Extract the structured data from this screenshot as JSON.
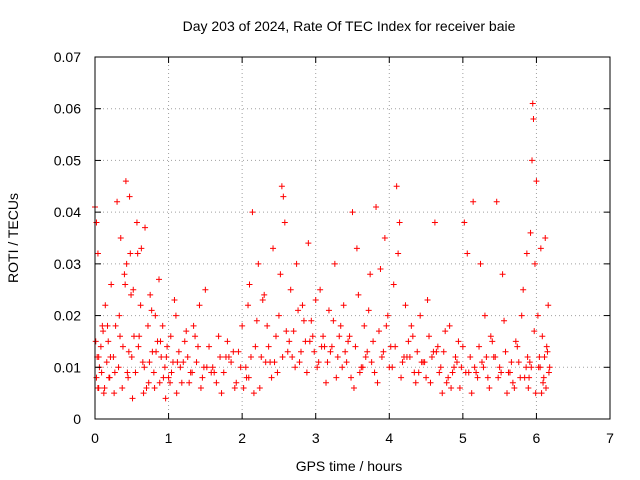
{
  "chart_data": {
    "type": "scatter",
    "title": "Day 203 of 2024, Rate Of TEC Index for receiver baie",
    "xlabel": "GPS time / hours",
    "ylabel": "ROTI / TECUs",
    "xlim": [
      0,
      7
    ],
    "ylim": [
      0,
      0.07
    ],
    "x_ticks": [
      0,
      1,
      2,
      3,
      4,
      5,
      6,
      7
    ],
    "x_tick_labels": [
      "0",
      "1",
      "2",
      "3",
      "4",
      "5",
      "6",
      "7"
    ],
    "y_ticks": [
      0,
      0.01,
      0.02,
      0.03,
      0.04,
      0.05,
      0.06,
      0.07
    ],
    "y_tick_labels": [
      "0",
      "0.01",
      "0.02",
      "0.03",
      "0.04",
      "0.05",
      "0.06",
      "0.07"
    ],
    "grid": true,
    "marker": "+",
    "marker_color": "#ff0000",
    "series": [
      {
        "x": [
          0.0,
          0.01,
          0.02,
          0.03,
          0.04,
          0.05,
          0.06,
          0.08,
          0.1,
          0.12,
          0.14,
          0.16,
          0.18,
          0.2,
          0.22,
          0.25,
          0.28,
          0.3,
          0.32,
          0.35,
          0.38,
          0.4,
          0.42,
          0.45,
          0.47,
          0.48,
          0.5,
          0.52,
          0.55,
          0.58,
          0.6,
          0.62,
          0.65,
          0.68,
          0.7,
          0.72,
          0.75,
          0.78,
          0.8,
          0.82,
          0.85,
          0.88,
          0.9,
          0.92,
          0.95,
          0.98,
          1.0,
          1.03,
          1.06,
          1.1,
          1.14,
          1.18,
          1.22,
          1.26,
          1.3,
          1.34,
          1.38,
          1.42,
          1.46,
          1.5,
          1.55,
          1.6,
          1.65,
          1.7,
          1.75,
          1.8,
          1.85,
          1.9,
          1.95,
          2.0,
          2.05,
          2.08,
          2.1,
          2.14,
          2.18,
          2.22,
          2.26,
          2.3,
          2.34,
          2.38,
          2.42,
          2.46,
          2.5,
          2.54,
          2.56,
          2.58,
          2.62,
          2.66,
          2.7,
          2.74,
          2.78,
          2.82,
          2.86,
          2.9,
          2.94,
          2.98,
          3.02,
          3.06,
          3.1,
          3.14,
          3.18,
          3.22,
          3.26,
          3.3,
          3.34,
          3.38,
          3.42,
          3.46,
          3.5,
          3.54,
          3.58,
          3.62,
          3.66,
          3.7,
          3.74,
          3.78,
          3.82,
          3.86,
          3.9,
          3.94,
          3.98,
          4.02,
          4.06,
          4.1,
          4.14,
          4.18,
          4.22,
          4.26,
          4.3,
          4.34,
          4.38,
          4.42,
          4.46,
          4.5,
          4.54,
          4.58,
          4.62,
          4.66,
          4.7,
          4.74,
          4.78,
          4.82,
          4.86,
          4.9,
          4.94,
          4.98,
          5.02,
          5.06,
          5.1,
          5.14,
          5.18,
          5.22,
          5.26,
          5.3,
          5.34,
          5.38,
          5.42,
          5.46,
          5.5,
          5.54,
          5.58,
          5.62,
          5.66,
          5.7,
          5.74,
          5.78,
          5.82,
          5.86,
          5.88,
          5.9,
          5.92,
          5.93,
          5.94,
          5.95,
          5.96,
          5.98,
          6.0,
          6.02,
          6.04,
          6.06,
          6.08,
          6.1,
          6.12,
          6.14,
          6.16,
          6.18,
          0.02,
          0.05,
          0.09,
          0.13,
          0.17,
          0.21,
          0.27,
          0.33,
          0.37,
          0.43,
          0.46,
          0.49,
          0.53,
          0.57,
          0.63,
          0.67,
          0.73,
          0.77,
          0.83,
          0.87,
          0.93,
          0.97,
          1.02,
          1.08,
          1.12,
          1.16,
          1.24,
          1.32,
          1.4,
          1.48,
          1.58,
          1.68,
          1.78,
          1.88,
          1.98,
          2.06,
          2.12,
          2.2,
          2.28,
          2.36,
          2.44,
          2.52,
          2.6,
          2.68,
          2.76,
          2.84,
          2.92,
          3.0,
          3.08,
          3.16,
          3.24,
          3.32,
          3.4,
          3.48,
          3.56,
          3.64,
          3.72,
          3.8,
          3.88,
          3.96,
          4.04,
          4.12,
          4.2,
          4.28,
          4.36,
          4.44,
          4.52,
          4.6,
          4.68,
          4.76,
          4.84,
          4.92,
          5.0,
          5.08,
          5.16,
          5.24,
          5.32,
          5.4,
          5.48,
          5.56,
          5.64,
          5.72,
          5.8,
          5.87,
          5.91,
          5.97,
          6.03,
          6.07,
          6.11,
          6.15,
          0.04,
          0.11,
          0.19,
          0.26,
          0.34,
          0.41,
          0.44,
          0.51,
          0.59,
          0.66,
          0.74,
          0.81,
          0.89,
          0.96,
          1.04,
          1.11,
          1.2,
          1.28,
          1.36,
          1.44,
          1.52,
          1.62,
          1.72,
          1.82,
          1.92,
          2.02,
          2.09,
          2.16,
          2.24,
          2.32,
          2.4,
          2.48,
          2.55,
          2.64,
          2.72,
          2.8,
          2.88,
          2.96,
          3.04,
          3.12,
          3.2,
          3.28,
          3.36,
          3.44,
          3.52,
          3.6,
          3.68,
          3.76,
          3.84,
          3.92,
          4.0,
          4.08,
          4.16,
          4.24,
          4.32,
          4.4,
          4.48,
          4.56,
          4.64,
          4.72,
          4.8,
          4.88,
          4.96,
          5.04,
          5.12,
          5.2,
          5.28,
          5.36,
          5.44,
          5.52,
          5.6,
          5.68,
          5.76,
          5.84,
          5.89,
          5.99,
          6.05,
          6.09,
          6.13,
          6.17
        ],
        "y": [
          0.041,
          0.015,
          0.008,
          0.012,
          0.032,
          0.006,
          0.01,
          0.014,
          0.018,
          0.005,
          0.022,
          0.011,
          0.015,
          0.008,
          0.026,
          0.012,
          0.018,
          0.042,
          0.01,
          0.035,
          0.014,
          0.028,
          0.046,
          0.008,
          0.043,
          0.032,
          0.012,
          0.025,
          0.009,
          0.032,
          0.016,
          0.022,
          0.011,
          0.037,
          0.006,
          0.018,
          0.024,
          0.013,
          0.009,
          0.02,
          0.015,
          0.007,
          0.012,
          0.018,
          0.01,
          0.014,
          0.008,
          0.016,
          0.011,
          0.02,
          0.013,
          0.007,
          0.015,
          0.012,
          0.009,
          0.018,
          0.011,
          0.022,
          0.008,
          0.025,
          0.014,
          0.01,
          0.007,
          0.012,
          0.009,
          0.015,
          0.011,
          0.006,
          0.013,
          0.018,
          0.01,
          0.022,
          0.026,
          0.04,
          0.014,
          0.03,
          0.012,
          0.024,
          0.018,
          0.011,
          0.033,
          0.016,
          0.02,
          0.045,
          0.043,
          0.038,
          0.013,
          0.025,
          0.017,
          0.03,
          0.011,
          0.022,
          0.015,
          0.034,
          0.019,
          0.013,
          0.01,
          0.025,
          0.016,
          0.007,
          0.021,
          0.014,
          0.03,
          0.012,
          0.018,
          0.022,
          0.011,
          0.016,
          0.04,
          0.014,
          0.024,
          0.01,
          0.018,
          0.013,
          0.028,
          0.015,
          0.041,
          0.017,
          0.012,
          0.035,
          0.02,
          0.014,
          0.026,
          0.045,
          0.038,
          0.011,
          0.022,
          0.015,
          0.018,
          0.009,
          0.013,
          0.02,
          0.011,
          0.008,
          0.016,
          0.012,
          0.038,
          0.014,
          0.01,
          0.013,
          0.007,
          0.018,
          0.009,
          0.012,
          0.015,
          0.01,
          0.038,
          0.032,
          0.012,
          0.042,
          0.009,
          0.014,
          0.011,
          0.02,
          0.008,
          0.016,
          0.012,
          0.042,
          0.01,
          0.028,
          0.013,
          0.009,
          0.011,
          0.006,
          0.014,
          0.008,
          0.025,
          0.01,
          0.012,
          0.008,
          0.036,
          0.01,
          0.05,
          0.061,
          0.058,
          0.03,
          0.046,
          0.02,
          0.012,
          0.033,
          0.016,
          0.008,
          0.035,
          0.014,
          0.022,
          0.01,
          0.038,
          0.012,
          0.009,
          0.006,
          0.018,
          0.012,
          0.009,
          0.02,
          0.006,
          0.03,
          0.013,
          0.024,
          0.016,
          0.038,
          0.033,
          0.01,
          0.007,
          0.021,
          0.013,
          0.027,
          0.008,
          0.012,
          0.007,
          0.023,
          0.011,
          0.01,
          0.017,
          0.009,
          0.014,
          0.01,
          0.009,
          0.016,
          0.012,
          0.013,
          0.01,
          0.008,
          0.012,
          0.019,
          0.023,
          0.014,
          0.011,
          0.028,
          0.017,
          0.012,
          0.021,
          0.019,
          0.015,
          0.023,
          0.014,
          0.011,
          0.019,
          0.016,
          0.013,
          0.008,
          0.033,
          0.01,
          0.021,
          0.009,
          0.029,
          0.018,
          0.01,
          0.032,
          0.012,
          0.012,
          0.007,
          0.011,
          0.023,
          0.013,
          0.009,
          0.017,
          0.006,
          0.011,
          0.014,
          0.009,
          0.01,
          0.03,
          0.012,
          0.015,
          0.008,
          0.019,
          0.009,
          0.015,
          0.02,
          0.032,
          0.011,
          0.017,
          0.01,
          0.005,
          0.012,
          0.013,
          0.006,
          0.017,
          0.008,
          0.005,
          0.016,
          0.026,
          0.009,
          0.004,
          0.014,
          0.005,
          0.011,
          0.006,
          0.015,
          0.004,
          0.009,
          0.005,
          0.011,
          0.007,
          0.016,
          0.006,
          0.01,
          0.009,
          0.005,
          0.012,
          0.007,
          0.006,
          0.008,
          0.005,
          0.006,
          0.011,
          0.008,
          0.009,
          0.012,
          0.015,
          0.01,
          0.013,
          0.009,
          0.016,
          0.011,
          0.014,
          0.013,
          0.008,
          0.01,
          0.015,
          0.006,
          0.009,
          0.012,
          0.011,
          0.007,
          0.013,
          0.01,
          0.014,
          0.008,
          0.012,
          0.016,
          0.009,
          0.011,
          0.007,
          0.013,
          0.005,
          0.008,
          0.01,
          0.006,
          0.009,
          0.005,
          0.008,
          0.01,
          0.006,
          0.012,
          0.009,
          0.005,
          0.007,
          0.011,
          0.008,
          0.006,
          0.005,
          0.01,
          0.007,
          0.006,
          0.009
        ]
      }
    ]
  }
}
